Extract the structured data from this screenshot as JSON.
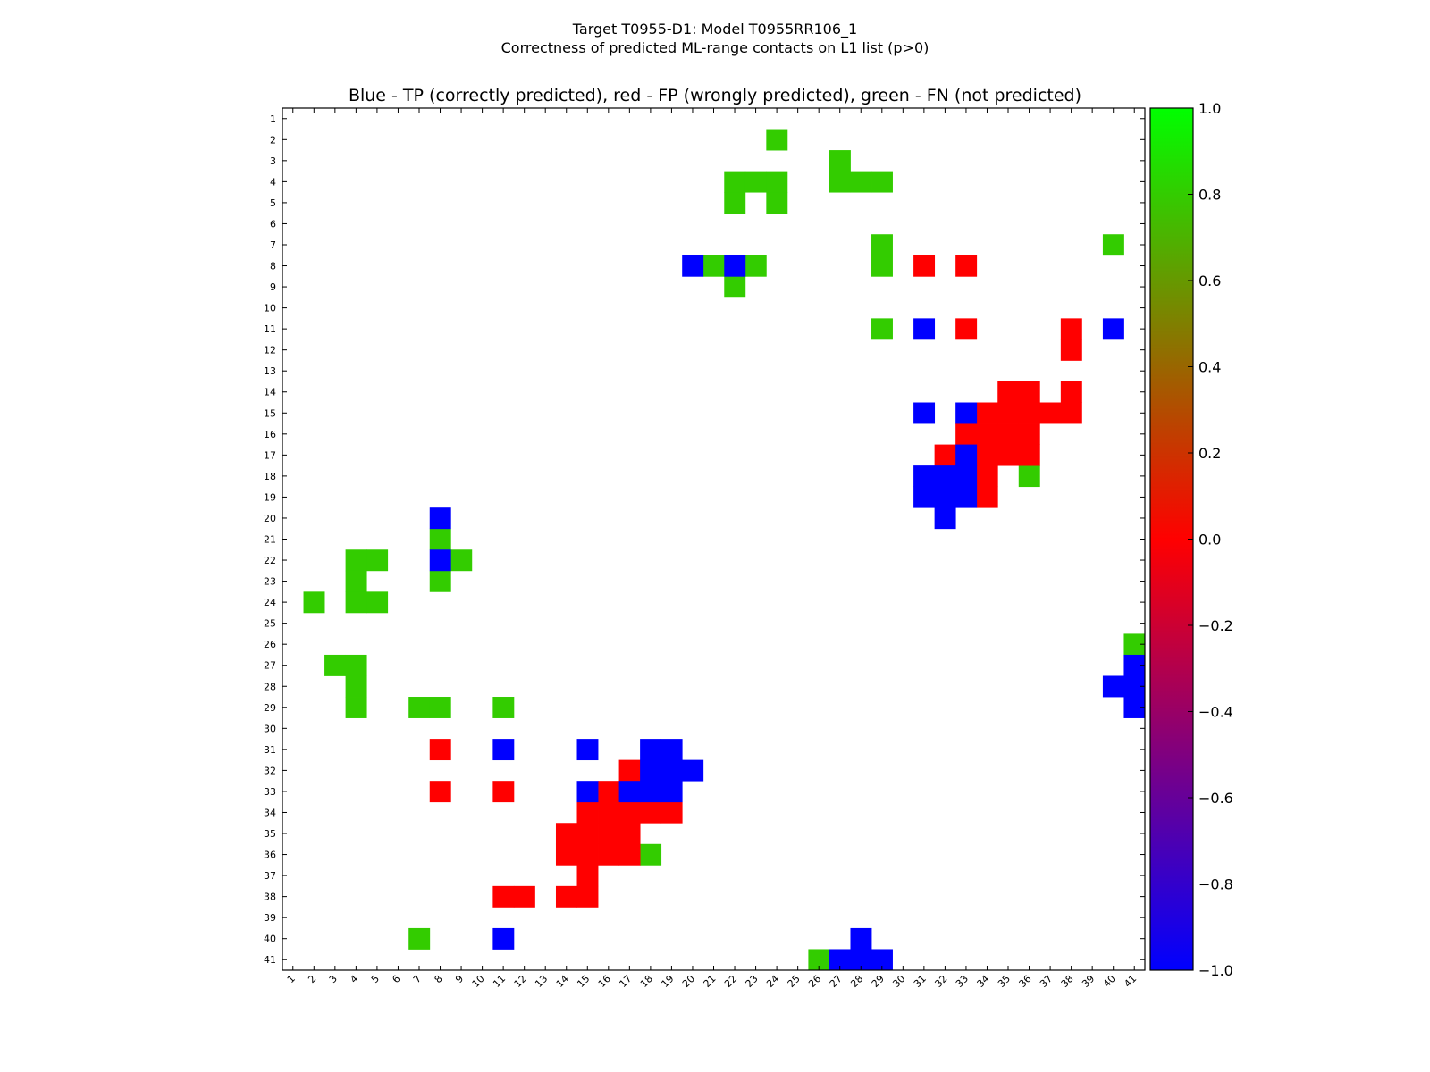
{
  "chart_data": {
    "type": "heatmap",
    "suptitle_line1": "Target T0955-D1: Model T0955RR106_1",
    "suptitle_line2": "Correctness of predicted ML-range contacts on L1 list (p>0)",
    "title": "Blue - TP (correctly predicted), red - FP (wrongly predicted), green - FN (not predicted)",
    "n": 41,
    "x_ticks": [
      "1",
      "2",
      "3",
      "4",
      "5",
      "6",
      "7",
      "8",
      "9",
      "10",
      "11",
      "12",
      "13",
      "14",
      "15",
      "16",
      "17",
      "18",
      "19",
      "20",
      "21",
      "22",
      "23",
      "24",
      "25",
      "26",
      "27",
      "28",
      "29",
      "30",
      "31",
      "32",
      "33",
      "34",
      "35",
      "36",
      "37",
      "38",
      "39",
      "40",
      "41"
    ],
    "y_ticks": [
      "1",
      "2",
      "3",
      "4",
      "5",
      "6",
      "7",
      "8",
      "9",
      "10",
      "11",
      "12",
      "13",
      "14",
      "15",
      "16",
      "17",
      "18",
      "19",
      "20",
      "21",
      "22",
      "23",
      "24",
      "25",
      "26",
      "27",
      "28",
      "29",
      "30",
      "31",
      "32",
      "33",
      "34",
      "35",
      "36",
      "37",
      "38",
      "39",
      "40",
      "41"
    ],
    "legend": {
      "TP": {
        "value": -1.0,
        "color": "#0000ff"
      },
      "FP": {
        "value": 0.0,
        "color": "#ff0000"
      },
      "FN": {
        "value": 0.8,
        "color": "#33cc00"
      }
    },
    "colorbar": {
      "range": [
        -1.0,
        1.0
      ],
      "ticks": [
        "1.0",
        "0.8",
        "0.6",
        "0.4",
        "0.2",
        "0.0",
        "−0.2",
        "−0.4",
        "−0.6",
        "−0.8",
        "−1.0"
      ],
      "tick_values": [
        1.0,
        0.8,
        0.6,
        0.4,
        0.2,
        0.0,
        -0.2,
        -0.4,
        -0.6,
        -0.8,
        -1.0
      ],
      "stops": [
        {
          "value": -1.0,
          "color": "#0000ff"
        },
        {
          "value": 0.0,
          "color": "#ff0000"
        },
        {
          "value": 1.0,
          "color": "#00ff00"
        }
      ]
    },
    "cells": {
      "TP": [
        [
          8,
          20
        ],
        [
          8,
          22
        ],
        [
          11,
          31
        ],
        [
          11,
          40
        ],
        [
          15,
          31
        ],
        [
          15,
          33
        ],
        [
          17,
          33
        ],
        [
          18,
          31
        ],
        [
          18,
          32
        ],
        [
          18,
          33
        ],
        [
          19,
          31
        ],
        [
          19,
          32
        ],
        [
          19,
          33
        ],
        [
          20,
          32
        ],
        [
          20,
          8
        ],
        [
          22,
          8
        ],
        [
          27,
          41
        ],
        [
          28,
          40
        ],
        [
          28,
          41
        ],
        [
          29,
          41
        ],
        [
          31,
          11
        ],
        [
          31,
          15
        ],
        [
          31,
          18
        ],
        [
          31,
          19
        ],
        [
          32,
          18
        ],
        [
          32,
          19
        ],
        [
          32,
          20
        ],
        [
          33,
          15
        ],
        [
          33,
          17
        ],
        [
          33,
          18
        ],
        [
          33,
          19
        ],
        [
          40,
          11
        ],
        [
          40,
          28
        ],
        [
          41,
          27
        ],
        [
          41,
          28
        ],
        [
          41,
          29
        ]
      ],
      "FP": [
        [
          8,
          31
        ],
        [
          8,
          33
        ],
        [
          11,
          33
        ],
        [
          11,
          38
        ],
        [
          12,
          38
        ],
        [
          14,
          35
        ],
        [
          14,
          36
        ],
        [
          14,
          38
        ],
        [
          15,
          34
        ],
        [
          15,
          35
        ],
        [
          15,
          36
        ],
        [
          15,
          37
        ],
        [
          15,
          38
        ],
        [
          16,
          33
        ],
        [
          16,
          34
        ],
        [
          16,
          35
        ],
        [
          16,
          36
        ],
        [
          17,
          32
        ],
        [
          17,
          34
        ],
        [
          17,
          35
        ],
        [
          17,
          36
        ],
        [
          18,
          34
        ],
        [
          19,
          34
        ],
        [
          31,
          8
        ],
        [
          32,
          17
        ],
        [
          33,
          8
        ],
        [
          33,
          11
        ],
        [
          33,
          16
        ],
        [
          34,
          15
        ],
        [
          34,
          16
        ],
        [
          34,
          17
        ],
        [
          34,
          18
        ],
        [
          34,
          19
        ],
        [
          35,
          14
        ],
        [
          35,
          15
        ],
        [
          35,
          16
        ],
        [
          35,
          17
        ],
        [
          36,
          14
        ],
        [
          36,
          15
        ],
        [
          36,
          16
        ],
        [
          36,
          17
        ],
        [
          37,
          15
        ],
        [
          38,
          11
        ],
        [
          38,
          12
        ],
        [
          38,
          14
        ],
        [
          38,
          15
        ]
      ],
      "FN": [
        [
          2,
          24
        ],
        [
          3,
          27
        ],
        [
          4,
          22
        ],
        [
          4,
          23
        ],
        [
          4,
          24
        ],
        [
          4,
          27
        ],
        [
          4,
          28
        ],
        [
          4,
          29
        ],
        [
          5,
          22
        ],
        [
          5,
          24
        ],
        [
          7,
          29
        ],
        [
          7,
          40
        ],
        [
          8,
          21
        ],
        [
          8,
          23
        ],
        [
          8,
          29
        ],
        [
          9,
          22
        ],
        [
          11,
          29
        ],
        [
          18,
          36
        ],
        [
          21,
          8
        ],
        [
          22,
          4
        ],
        [
          22,
          5
        ],
        [
          22,
          9
        ],
        [
          23,
          4
        ],
        [
          23,
          8
        ],
        [
          24,
          2
        ],
        [
          24,
          4
        ],
        [
          24,
          5
        ],
        [
          26,
          41
        ],
        [
          27,
          3
        ],
        [
          27,
          4
        ],
        [
          28,
          4
        ],
        [
          29,
          4
        ],
        [
          29,
          7
        ],
        [
          29,
          8
        ],
        [
          29,
          11
        ],
        [
          36,
          18
        ],
        [
          40,
          7
        ],
        [
          41,
          26
        ]
      ]
    }
  }
}
